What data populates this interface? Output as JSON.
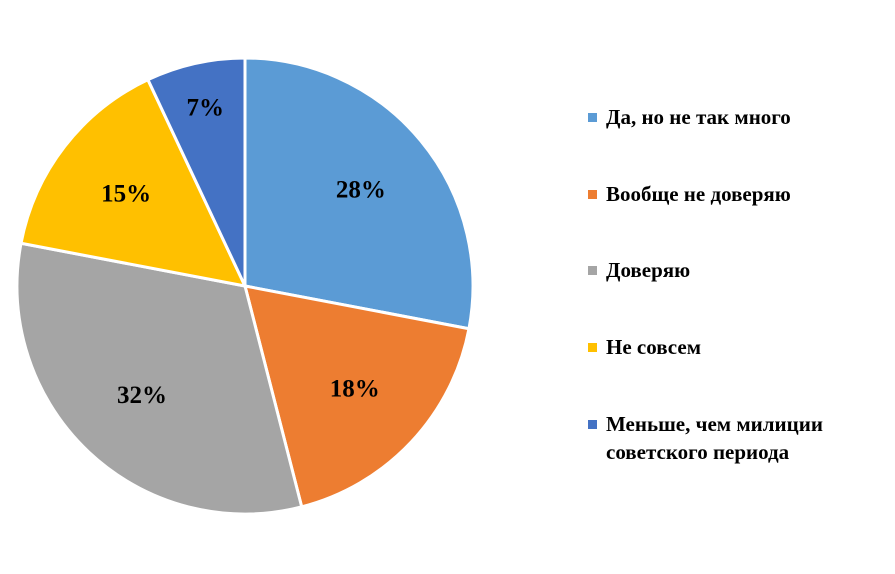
{
  "chart_data": {
    "type": "pie",
    "title": "",
    "categories": [
      "Да, но не так много",
      "Вообще не доверяю",
      "Доверяю",
      "Не совсем",
      "Меньше, чем милиции советского периода"
    ],
    "values": [
      28,
      18,
      32,
      15,
      7
    ],
    "value_labels": [
      "28%",
      "18%",
      "32%",
      "15%",
      "7%"
    ],
    "colors": [
      "#5b9bd5",
      "#ed7d31",
      "#a5a5a5",
      "#ffc000",
      "#4472c4"
    ],
    "legend_position": "right"
  }
}
